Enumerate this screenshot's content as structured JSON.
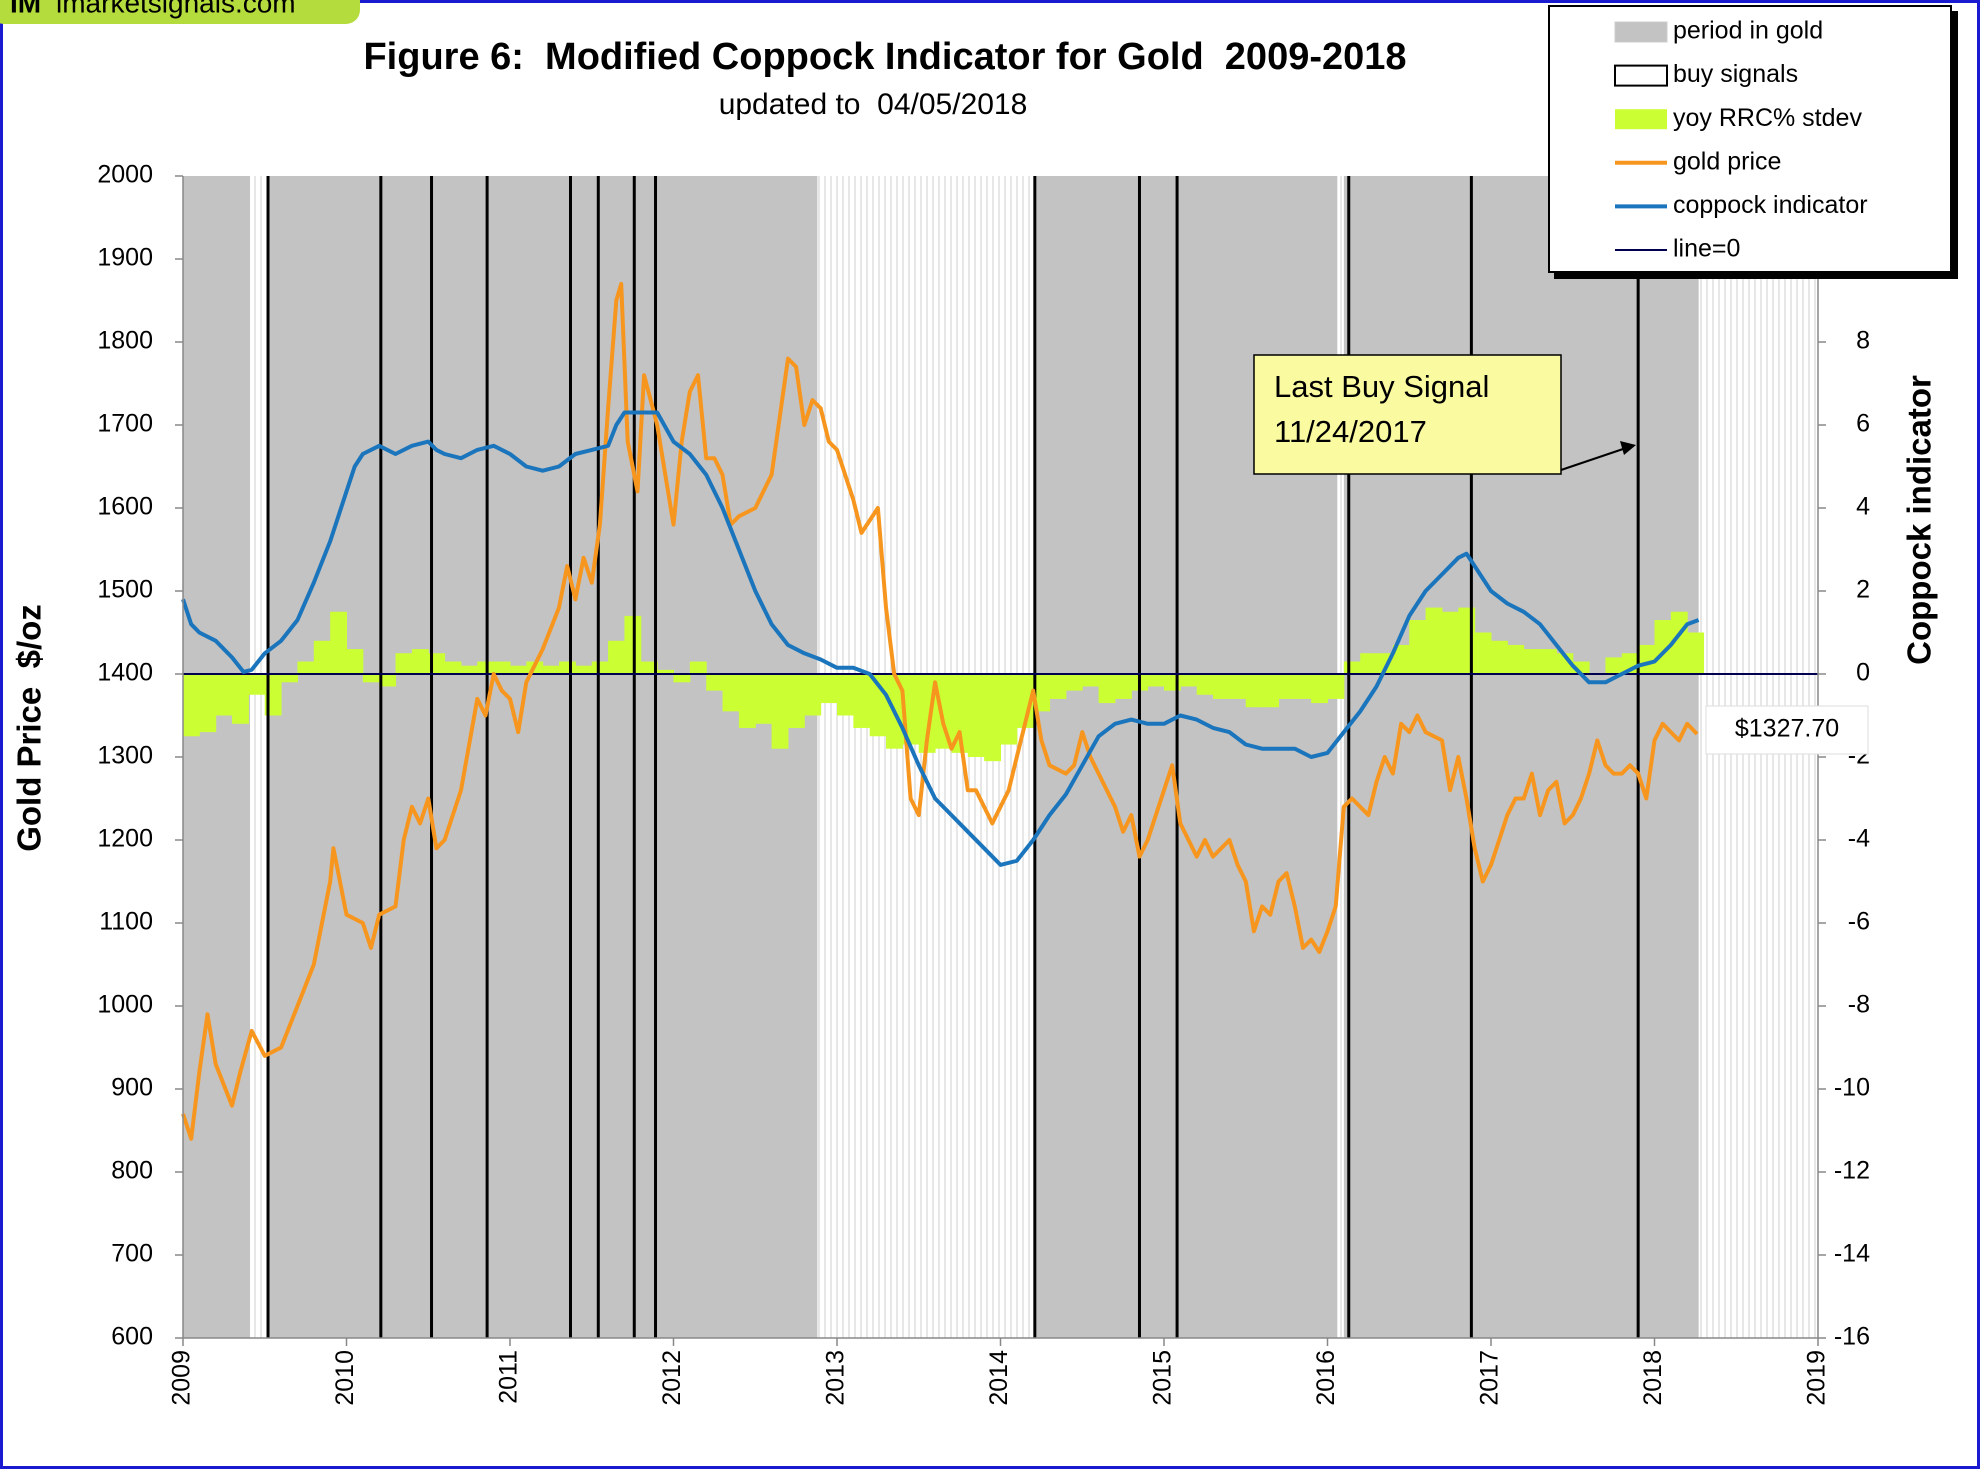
{
  "chart_data": {
    "type": "combo",
    "brand_logo": "IM",
    "brand": "imarketsignals.com",
    "title": "Figure 6:  Modified Coppock Indicator for Gold  2009-2018",
    "subtitle": "updated to  04/05/2018",
    "y_label": "Gold Price  $/oz",
    "y2_label": "Coppock indicator",
    "xlim": [
      2009,
      2019
    ],
    "xticks": [
      2009,
      2010,
      2011,
      2012,
      2013,
      2014,
      2015,
      2016,
      2017,
      2018,
      2019
    ],
    "ylim": [
      600,
      2000
    ],
    "yticks": [
      600,
      700,
      800,
      900,
      1000,
      1100,
      1200,
      1300,
      1400,
      1500,
      1600,
      1700,
      1800,
      1900,
      2000
    ],
    "y2lim": [
      -16,
      12
    ],
    "y2ticks": [
      -16,
      -14,
      -12,
      -10,
      -8,
      -6,
      -4,
      -2,
      0,
      2,
      4,
      6,
      8
    ],
    "periods": {
      "name": "period in gold",
      "color": "#c3c3c3",
      "ranges": [
        [
          2009.0,
          2009.41
        ],
        [
          2009.52,
          2012.88
        ],
        [
          2014.21,
          2016.06
        ],
        [
          2016.1,
          2018.27
        ]
      ]
    },
    "buy_signals": {
      "name": "buy signals",
      "color": "#000000",
      "x": [
        2009.52,
        2010.21,
        2010.52,
        2010.86,
        2011.37,
        2011.54,
        2011.76,
        2011.89,
        2014.21,
        2014.85,
        2015.08,
        2016.13,
        2016.88,
        2017.9
      ]
    },
    "series": [
      {
        "name": "yoy RRC% stdev",
        "type": "bar",
        "axis": "y2",
        "color": "#ccff33",
        "x": [
          2009.0,
          2009.1,
          2009.2,
          2009.3,
          2009.4,
          2009.5,
          2009.6,
          2009.7,
          2009.8,
          2009.9,
          2010.0,
          2010.1,
          2010.2,
          2010.3,
          2010.4,
          2010.5,
          2010.6,
          2010.7,
          2010.8,
          2010.9,
          2011.0,
          2011.1,
          2011.2,
          2011.3,
          2011.4,
          2011.5,
          2011.6,
          2011.7,
          2011.8,
          2011.9,
          2012.0,
          2012.1,
          2012.2,
          2012.3,
          2012.4,
          2012.5,
          2012.6,
          2012.7,
          2012.8,
          2012.9,
          2013.0,
          2013.1,
          2013.2,
          2013.3,
          2013.4,
          2013.5,
          2013.6,
          2013.7,
          2013.8,
          2013.9,
          2014.0,
          2014.1,
          2014.2,
          2014.3,
          2014.4,
          2014.5,
          2014.6,
          2014.7,
          2014.8,
          2014.9,
          2015.0,
          2015.1,
          2015.2,
          2015.3,
          2015.4,
          2015.5,
          2015.6,
          2015.7,
          2015.8,
          2015.9,
          2016.0,
          2016.1,
          2016.2,
          2016.3,
          2016.4,
          2016.5,
          2016.6,
          2016.7,
          2016.8,
          2016.9,
          2017.0,
          2017.1,
          2017.2,
          2017.3,
          2017.4,
          2017.5,
          2017.6,
          2017.7,
          2017.8,
          2017.9,
          2018.0,
          2018.1,
          2018.2
        ],
        "values": [
          -1.5,
          -1.4,
          -1.0,
          -1.2,
          -0.5,
          -1.0,
          -0.2,
          0.3,
          0.8,
          1.5,
          0.6,
          -0.2,
          -0.3,
          0.5,
          0.6,
          0.5,
          0.3,
          0.2,
          0.3,
          0.3,
          0.2,
          0.3,
          0.2,
          0.3,
          0.2,
          0.3,
          0.8,
          1.4,
          0.3,
          0.1,
          -0.2,
          0.3,
          -0.4,
          -0.9,
          -1.3,
          -1.2,
          -1.8,
          -1.3,
          -1.0,
          -0.7,
          -1.0,
          -1.3,
          -1.5,
          -1.8,
          -1.7,
          -1.9,
          -1.8,
          -1.9,
          -2.0,
          -2.1,
          -1.7,
          -1.3,
          -0.9,
          -0.6,
          -0.4,
          -0.3,
          -0.7,
          -0.6,
          -0.4,
          -0.3,
          -0.4,
          -0.3,
          -0.5,
          -0.6,
          -0.6,
          -0.8,
          -0.8,
          -0.6,
          -0.6,
          -0.7,
          -0.6,
          0.3,
          0.5,
          0.5,
          0.7,
          1.3,
          1.6,
          1.5,
          1.6,
          1.0,
          0.8,
          0.7,
          0.6,
          0.6,
          0.5,
          0.3,
          0.0,
          0.4,
          0.5,
          0.7,
          1.3,
          1.5,
          1.0
        ]
      },
      {
        "name": "gold price",
        "type": "line",
        "axis": "y",
        "color": "#f7961e",
        "x": [
          2009.0,
          2009.05,
          2009.1,
          2009.15,
          2009.2,
          2009.3,
          2009.35,
          2009.42,
          2009.5,
          2009.6,
          2009.7,
          2009.8,
          2009.9,
          2009.92,
          2010.0,
          2010.1,
          2010.15,
          2010.2,
          2010.3,
          2010.35,
          2010.4,
          2010.45,
          2010.5,
          2010.55,
          2010.6,
          2010.7,
          2010.8,
          2010.85,
          2010.9,
          2010.95,
          2011.0,
          2011.05,
          2011.1,
          2011.2,
          2011.3,
          2011.35,
          2011.4,
          2011.45,
          2011.5,
          2011.55,
          2011.6,
          2011.65,
          2011.68,
          2011.72,
          2011.78,
          2011.82,
          2011.9,
          2011.95,
          2012.0,
          2012.05,
          2012.1,
          2012.15,
          2012.2,
          2012.25,
          2012.3,
          2012.35,
          2012.4,
          2012.5,
          2012.55,
          2012.6,
          2012.7,
          2012.75,
          2012.8,
          2012.85,
          2012.9,
          2012.95,
          2013.0,
          2013.1,
          2013.15,
          2013.25,
          2013.3,
          2013.35,
          2013.4,
          2013.45,
          2013.5,
          2013.55,
          2013.6,
          2013.65,
          2013.7,
          2013.75,
          2013.8,
          2013.85,
          2013.95,
          2014.0,
          2014.05,
          2014.1,
          2014.15,
          2014.2,
          2014.25,
          2014.3,
          2014.4,
          2014.45,
          2014.5,
          2014.55,
          2014.6,
          2014.7,
          2014.75,
          2014.8,
          2014.85,
          2014.9,
          2015.0,
          2015.05,
          2015.1,
          2015.2,
          2015.25,
          2015.3,
          2015.4,
          2015.45,
          2015.5,
          2015.55,
          2015.6,
          2015.65,
          2015.7,
          2015.75,
          2015.8,
          2015.85,
          2015.9,
          2015.95,
          2016.0,
          2016.05,
          2016.1,
          2016.15,
          2016.2,
          2016.25,
          2016.3,
          2016.35,
          2016.4,
          2016.45,
          2016.5,
          2016.55,
          2016.6,
          2016.7,
          2016.75,
          2016.8,
          2016.85,
          2016.9,
          2016.95,
          2017.0,
          2017.05,
          2017.1,
          2017.15,
          2017.2,
          2017.25,
          2017.3,
          2017.35,
          2017.4,
          2017.45,
          2017.5,
          2017.55,
          2017.6,
          2017.65,
          2017.7,
          2017.75,
          2017.8,
          2017.85,
          2017.9,
          2017.95,
          2018.0,
          2018.05,
          2018.1,
          2018.15,
          2018.2,
          2018.26
        ],
        "values": [
          870,
          840,
          920,
          990,
          930,
          880,
          920,
          970,
          940,
          950,
          1000,
          1050,
          1150,
          1190,
          1110,
          1100,
          1070,
          1110,
          1120,
          1200,
          1240,
          1220,
          1250,
          1190,
          1200,
          1260,
          1370,
          1350,
          1400,
          1380,
          1370,
          1330,
          1390,
          1430,
          1480,
          1530,
          1490,
          1540,
          1510,
          1580,
          1720,
          1850,
          1870,
          1680,
          1620,
          1760,
          1700,
          1640,
          1580,
          1680,
          1740,
          1760,
          1660,
          1660,
          1640,
          1580,
          1590,
          1600,
          1620,
          1640,
          1780,
          1770,
          1700,
          1730,
          1720,
          1680,
          1670,
          1610,
          1570,
          1600,
          1480,
          1400,
          1380,
          1250,
          1230,
          1320,
          1390,
          1340,
          1310,
          1330,
          1260,
          1260,
          1220,
          1240,
          1260,
          1300,
          1340,
          1380,
          1320,
          1290,
          1280,
          1290,
          1330,
          1300,
          1280,
          1240,
          1210,
          1230,
          1180,
          1200,
          1260,
          1290,
          1220,
          1180,
          1200,
          1180,
          1200,
          1170,
          1150,
          1090,
          1120,
          1110,
          1150,
          1160,
          1120,
          1070,
          1080,
          1065,
          1090,
          1120,
          1240,
          1250,
          1240,
          1230,
          1270,
          1300,
          1280,
          1340,
          1330,
          1350,
          1330,
          1320,
          1260,
          1300,
          1250,
          1190,
          1150,
          1170,
          1200,
          1230,
          1250,
          1250,
          1280,
          1230,
          1260,
          1270,
          1220,
          1230,
          1250,
          1280,
          1320,
          1290,
          1280,
          1280,
          1290,
          1280,
          1250,
          1320,
          1340,
          1330,
          1320,
          1340,
          1327.7
        ]
      },
      {
        "name": "coppock indicator",
        "type": "line",
        "axis": "y2",
        "color": "#1b75bc",
        "x": [
          2009.0,
          2009.05,
          2009.1,
          2009.2,
          2009.3,
          2009.37,
          2009.42,
          2009.5,
          2009.6,
          2009.7,
          2009.8,
          2009.9,
          2010.0,
          2010.05,
          2010.1,
          2010.2,
          2010.3,
          2010.4,
          2010.5,
          2010.55,
          2010.6,
          2010.7,
          2010.8,
          2010.9,
          2011.0,
          2011.1,
          2011.2,
          2011.3,
          2011.4,
          2011.5,
          2011.6,
          2011.65,
          2011.7,
          2011.8,
          2011.9,
          2012.0,
          2012.1,
          2012.2,
          2012.3,
          2012.4,
          2012.5,
          2012.6,
          2012.7,
          2012.8,
          2012.9,
          2013.0,
          2013.1,
          2013.2,
          2013.3,
          2013.4,
          2013.5,
          2013.6,
          2013.7,
          2013.8,
          2013.9,
          2014.0,
          2014.1,
          2014.2,
          2014.3,
          2014.4,
          2014.5,
          2014.6,
          2014.7,
          2014.8,
          2014.9,
          2015.0,
          2015.1,
          2015.2,
          2015.3,
          2015.4,
          2015.5,
          2015.6,
          2015.7,
          2015.8,
          2015.9,
          2016.0,
          2016.1,
          2016.2,
          2016.3,
          2016.4,
          2016.5,
          2016.6,
          2016.7,
          2016.8,
          2016.85,
          2016.9,
          2017.0,
          2017.1,
          2017.2,
          2017.3,
          2017.4,
          2017.5,
          2017.6,
          2017.7,
          2017.8,
          2017.9,
          2018.0,
          2018.1,
          2018.2,
          2018.27
        ],
        "values": [
          1.8,
          1.2,
          1.0,
          0.8,
          0.4,
          0.05,
          0.1,
          0.5,
          0.8,
          1.3,
          2.2,
          3.2,
          4.4,
          5.0,
          5.3,
          5.5,
          5.3,
          5.5,
          5.6,
          5.4,
          5.3,
          5.2,
          5.4,
          5.5,
          5.3,
          5.0,
          4.9,
          5.0,
          5.3,
          5.4,
          5.5,
          6.0,
          6.3,
          6.3,
          6.3,
          5.6,
          5.3,
          4.8,
          4.0,
          3.0,
          2.0,
          1.2,
          0.7,
          0.5,
          0.35,
          0.15,
          0.15,
          0.0,
          -0.5,
          -1.3,
          -2.2,
          -3.0,
          -3.4,
          -3.8,
          -4.2,
          -4.6,
          -4.5,
          -4.0,
          -3.4,
          -2.9,
          -2.2,
          -1.5,
          -1.2,
          -1.1,
          -1.2,
          -1.2,
          -1.0,
          -1.1,
          -1.3,
          -1.4,
          -1.7,
          -1.8,
          -1.8,
          -1.8,
          -2.0,
          -1.9,
          -1.4,
          -0.9,
          -0.3,
          0.5,
          1.4,
          2.0,
          2.4,
          2.8,
          2.9,
          2.6,
          2.0,
          1.7,
          1.5,
          1.2,
          0.7,
          0.2,
          -0.2,
          -0.2,
          0.0,
          0.2,
          0.3,
          0.7,
          1.2,
          1.3
        ]
      }
    ],
    "zero_line": {
      "name": "line=0",
      "value": 0,
      "axis": "y2",
      "color": "#000050"
    },
    "annotation": [
      "Last Buy Signal",
      "11/24/2017"
    ],
    "last_price_label": "$1327.70"
  }
}
